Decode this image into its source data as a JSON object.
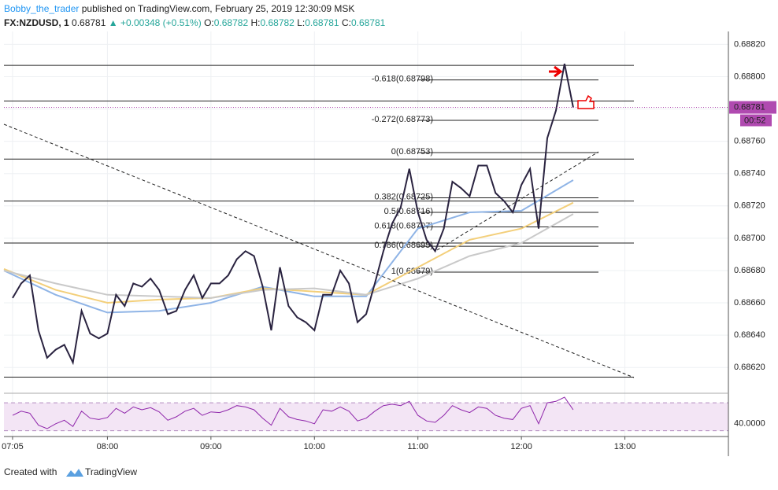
{
  "header": {
    "author": "Bobby_the_trader",
    "published": "published on TradingView.com, February 25, 2019 12:30:09 MSK",
    "symbol": "FX:NZDUSD, 1",
    "price": "0.68781",
    "change": "▲ +0.00348 (+0.51%)",
    "open_label": "O:",
    "open": "0.68782",
    "high_label": "H:",
    "high": "0.68782",
    "low_label": "L:",
    "low": "0.68781",
    "close_label": "C:",
    "close": "0.68781"
  },
  "chart_data": {
    "type": "line",
    "xlim": [
      "07:00",
      "14:00"
    ],
    "xticks": [
      "07:05",
      "08:00",
      "09:00",
      "10:00",
      "11:00",
      "12:00",
      "13:00"
    ],
    "ylim": [
      0.68605,
      0.68828
    ],
    "yticks": [
      {
        "value": 0.6862,
        "label": "0.68620"
      },
      {
        "value": 0.6864,
        "label": "0.68640"
      },
      {
        "value": 0.6866,
        "label": "0.68660"
      },
      {
        "value": 0.6868,
        "label": "0.68680"
      },
      {
        "value": 0.687,
        "label": "0.68700"
      },
      {
        "value": 0.6872,
        "label": "0.68720"
      },
      {
        "value": 0.6874,
        "label": "0.68740"
      },
      {
        "value": 0.6876,
        "label": "0.68760"
      },
      {
        "value": 0.6878,
        "label": "0.68780"
      },
      {
        "value": 0.688,
        "label": "0.68800"
      },
      {
        "value": 0.6882,
        "label": "0.68820"
      }
    ],
    "grid": true,
    "close": {
      "color": "#2a2340",
      "x": [
        "07:05",
        "07:10",
        "07:15",
        "07:20",
        "07:25",
        "07:30",
        "07:35",
        "07:40",
        "07:45",
        "07:50",
        "07:55",
        "08:00",
        "08:05",
        "08:10",
        "08:15",
        "08:20",
        "08:25",
        "08:30",
        "08:35",
        "08:40",
        "08:45",
        "08:50",
        "08:55",
        "09:00",
        "09:05",
        "09:10",
        "09:15",
        "09:20",
        "09:25",
        "09:30",
        "09:35",
        "09:40",
        "09:45",
        "09:50",
        "09:55",
        "10:00",
        "10:05",
        "10:10",
        "10:15",
        "10:20",
        "10:25",
        "10:30",
        "10:35",
        "10:40",
        "10:45",
        "10:50",
        "10:55",
        "11:00",
        "11:05",
        "11:10",
        "11:15",
        "11:20",
        "11:25",
        "11:30",
        "11:35",
        "11:40",
        "11:45",
        "11:50",
        "11:55",
        "12:00",
        "12:05",
        "12:10",
        "12:15",
        "12:20",
        "12:25",
        "12:30"
      ],
      "values": [
        0.68663,
        0.68672,
        0.68677,
        0.68643,
        0.68626,
        0.68631,
        0.68634,
        0.68623,
        0.68655,
        0.68641,
        0.68638,
        0.68641,
        0.68665,
        0.68658,
        0.68672,
        0.6867,
        0.68675,
        0.68668,
        0.68653,
        0.68655,
        0.68668,
        0.68677,
        0.68663,
        0.68672,
        0.68672,
        0.68677,
        0.68687,
        0.68692,
        0.68689,
        0.6867,
        0.68643,
        0.68682,
        0.68658,
        0.68651,
        0.68648,
        0.68643,
        0.68665,
        0.68665,
        0.6868,
        0.68672,
        0.68648,
        0.68653,
        0.68672,
        0.68692,
        0.68709,
        0.68719,
        0.68743,
        0.68716,
        0.68699,
        0.68692,
        0.68706,
        0.68735,
        0.68731,
        0.68726,
        0.68745,
        0.68745,
        0.68728,
        0.68723,
        0.68716,
        0.68733,
        0.68743,
        0.68706,
        0.68762,
        0.68779,
        0.68808,
        0.68781
      ]
    },
    "moving_averages": [
      {
        "color": "#8fb4e6",
        "x": [
          "07:00",
          "07:30",
          "08:00",
          "08:30",
          "09:00",
          "09:30",
          "10:00",
          "10:30",
          "11:00",
          "11:30",
          "12:00",
          "12:30"
        ],
        "values": [
          0.6868,
          0.68665,
          0.68654,
          0.68655,
          0.6866,
          0.6867,
          0.68664,
          0.68664,
          0.68706,
          0.68716,
          0.68717,
          0.68736
        ]
      },
      {
        "color": "#f3cf7a",
        "x": [
          "07:00",
          "07:30",
          "08:00",
          "08:30",
          "09:00",
          "09:30",
          "10:00",
          "10:30",
          "11:00",
          "11:30",
          "12:00",
          "12:30"
        ],
        "values": [
          0.68681,
          0.68668,
          0.6866,
          0.68662,
          0.68663,
          0.68669,
          0.68667,
          0.68665,
          0.68682,
          0.68699,
          0.68706,
          0.68722
        ]
      },
      {
        "color": "#c9c9c9",
        "x": [
          "07:00",
          "07:30",
          "08:00",
          "08:30",
          "09:00",
          "09:30",
          "10:00",
          "10:30",
          "11:00",
          "11:30",
          "12:00",
          "12:30"
        ],
        "values": [
          0.6868,
          0.68672,
          0.68665,
          0.68664,
          0.68663,
          0.68668,
          0.68669,
          0.68665,
          0.68675,
          0.68689,
          0.68697,
          0.68715
        ]
      }
    ],
    "levels": [
      0.68807,
      0.68785,
      0.68749,
      0.68723,
      0.68697,
      0.68614
    ],
    "fib_levels": [
      {
        "label": "-0.618(0.68798)",
        "value": 0.68798
      },
      {
        "label": "-0.272(0.68773)",
        "value": 0.68773
      },
      {
        "label": "0(0.68753)",
        "value": 0.68753
      },
      {
        "label": "0.382(0.68725)",
        "value": 0.68725
      },
      {
        "label": "0.5(0.68716)",
        "value": 0.68716
      },
      {
        "label": "0.618(0.68707)",
        "value": 0.68707
      },
      {
        "label": "0.786(0.68695)",
        "value": 0.68695
      },
      {
        "label": "1(0.68679)",
        "value": 0.68679
      }
    ],
    "last_price": 0.68781,
    "countdown": "00:52",
    "rsi": {
      "color": "#8e24aa",
      "ylim": [
        24,
        78
      ],
      "band": [
        30,
        70
      ],
      "yticks": [
        {
          "value": 40,
          "label": "40.0000"
        }
      ],
      "values": [
        52,
        58,
        55,
        38,
        33,
        40,
        45,
        36,
        58,
        48,
        46,
        49,
        62,
        55,
        64,
        60,
        63,
        57,
        45,
        50,
        58,
        62,
        52,
        57,
        56,
        60,
        66,
        64,
        60,
        48,
        38,
        62,
        50,
        46,
        44,
        40,
        60,
        58,
        64,
        58,
        44,
        48,
        58,
        66,
        68,
        66,
        72,
        52,
        44,
        42,
        52,
        66,
        60,
        56,
        64,
        62,
        52,
        48,
        46,
        62,
        66,
        40,
        70,
        72,
        78,
        60
      ]
    }
  },
  "footer": {
    "created": "Created with",
    "brand": "TradingView"
  }
}
